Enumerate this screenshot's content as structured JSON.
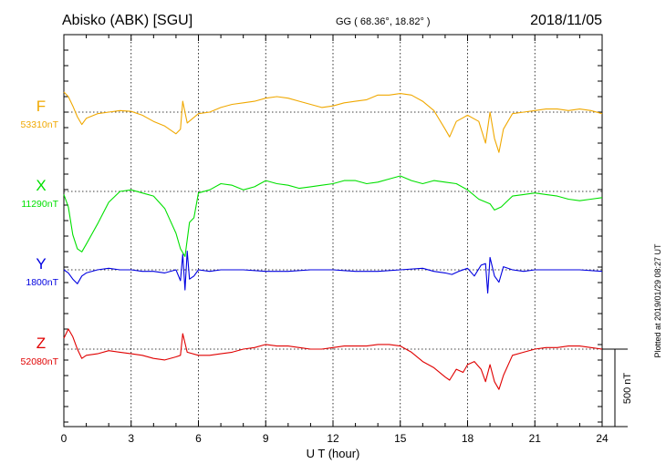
{
  "header": {
    "station": "Abisko (ABK)  [SGU]",
    "coords": "GG ( 68.36°,  18.82° )",
    "date": "2018/11/05"
  },
  "footer": {
    "plotted": "Plotted at 2019/01/29 08:27 UT"
  },
  "chart_data": {
    "type": "line",
    "title": "Abisko (ABK)  [SGU]",
    "xlabel": "U T (hour)",
    "xlim": [
      0,
      24
    ],
    "xticks": [
      0,
      3,
      6,
      9,
      12,
      15,
      18,
      21,
      24
    ],
    "xtick_labels": [
      "0",
      "3",
      "6",
      "9",
      "12",
      "15",
      "18",
      "21",
      "24"
    ],
    "grid": true,
    "scale_bar": {
      "label": "500 nT",
      "value": 500
    },
    "series": [
      {
        "name": "F",
        "baseline_label": "53310nT",
        "baseline": 53310,
        "color": "#f0a800",
        "x": [
          0,
          0.2,
          0.4,
          0.6,
          0.8,
          1.0,
          1.5,
          2.0,
          2.5,
          3.0,
          3.5,
          4.0,
          4.5,
          5.0,
          5.2,
          5.3,
          5.5,
          6.0,
          6.5,
          7.0,
          7.5,
          8.0,
          8.5,
          9.0,
          9.5,
          10.0,
          10.5,
          11.0,
          11.5,
          12.0,
          12.5,
          13.0,
          13.5,
          14.0,
          14.5,
          15.0,
          15.5,
          16.0,
          16.5,
          17.0,
          17.2,
          17.5,
          18.0,
          18.5,
          18.8,
          19.0,
          19.2,
          19.4,
          19.6,
          20.0,
          20.5,
          21.0,
          21.5,
          22.0,
          22.5,
          23.0,
          23.5,
          24.0
        ],
        "y": [
          53440,
          53410,
          53350,
          53280,
          53230,
          53270,
          53300,
          53310,
          53320,
          53315,
          53290,
          53250,
          53220,
          53170,
          53200,
          53380,
          53240,
          53300,
          53310,
          53340,
          53360,
          53370,
          53380,
          53400,
          53410,
          53400,
          53380,
          53360,
          53340,
          53350,
          53370,
          53380,
          53390,
          53420,
          53420,
          53430,
          53420,
          53380,
          53320,
          53200,
          53150,
          53250,
          53290,
          53250,
          53110,
          53310,
          53140,
          53050,
          53200,
          53300,
          53310,
          53320,
          53330,
          53330,
          53320,
          53330,
          53320,
          53300
        ]
      },
      {
        "name": "X",
        "baseline_label": "11290nT",
        "baseline": 11290,
        "color": "#00e000",
        "x": [
          0,
          0.2,
          0.4,
          0.6,
          0.8,
          1.0,
          1.5,
          2.0,
          2.5,
          3.0,
          3.5,
          4.0,
          4.5,
          5.0,
          5.2,
          5.4,
          5.6,
          5.8,
          6.0,
          6.5,
          7.0,
          7.5,
          8.0,
          8.5,
          9.0,
          9.5,
          10.0,
          10.5,
          11.0,
          11.5,
          12.0,
          12.5,
          13.0,
          13.5,
          14.0,
          14.5,
          15.0,
          15.5,
          16.0,
          16.5,
          17.0,
          17.5,
          18.0,
          18.5,
          19.0,
          19.2,
          19.5,
          20.0,
          20.5,
          21.0,
          21.5,
          22.0,
          22.5,
          23.0,
          23.5,
          24.0
        ],
        "y": [
          11270,
          11190,
          11010,
          10920,
          10900,
          10950,
          11080,
          11220,
          11290,
          11300,
          11280,
          11260,
          11180,
          11020,
          10920,
          10870,
          11090,
          11120,
          11280,
          11300,
          11340,
          11330,
          11300,
          11320,
          11360,
          11340,
          11330,
          11310,
          11320,
          11330,
          11340,
          11360,
          11360,
          11340,
          11350,
          11370,
          11390,
          11360,
          11340,
          11360,
          11350,
          11340,
          11300,
          11240,
          11210,
          11170,
          11190,
          11260,
          11270,
          11280,
          11270,
          11260,
          11240,
          11230,
          11240,
          11250
        ]
      },
      {
        "name": "Y",
        "baseline_label": "1800nT",
        "baseline": 1800,
        "color": "#0000e0",
        "x": [
          0,
          0.2,
          0.4,
          0.6,
          0.8,
          1.0,
          1.5,
          2.0,
          2.5,
          3.0,
          3.5,
          4.0,
          4.5,
          5.0,
          5.2,
          5.3,
          5.4,
          5.5,
          5.6,
          5.8,
          6.0,
          6.5,
          7.0,
          8.0,
          9.0,
          10.0,
          11.0,
          12.0,
          13.0,
          14.0,
          15.0,
          16.0,
          16.5,
          17.0,
          17.3,
          17.6,
          18.0,
          18.3,
          18.6,
          18.8,
          18.9,
          19.0,
          19.2,
          19.4,
          19.6,
          20.0,
          20.5,
          21.0,
          22.0,
          23.0,
          24.0
        ],
        "y": [
          1800,
          1780,
          1740,
          1710,
          1760,
          1780,
          1800,
          1810,
          1800,
          1800,
          1790,
          1790,
          1780,
          1800,
          1730,
          1900,
          1670,
          1920,
          1740,
          1760,
          1800,
          1790,
          1800,
          1800,
          1790,
          1790,
          1800,
          1800,
          1790,
          1790,
          1800,
          1810,
          1790,
          1780,
          1770,
          1790,
          1810,
          1760,
          1830,
          1840,
          1650,
          1880,
          1760,
          1720,
          1820,
          1800,
          1790,
          1800,
          1800,
          1800,
          1790
        ]
      },
      {
        "name": "Z",
        "baseline_label": "52080nT",
        "baseline": 52080,
        "color": "#e00000",
        "x": [
          0,
          0.2,
          0.4,
          0.6,
          0.8,
          1.0,
          1.5,
          2.0,
          2.5,
          3.0,
          3.5,
          4.0,
          4.5,
          5.0,
          5.2,
          5.3,
          5.5,
          6.0,
          6.5,
          7.0,
          7.5,
          8.0,
          8.5,
          9.0,
          9.5,
          10.0,
          10.5,
          11.0,
          11.5,
          12.0,
          12.5,
          13.0,
          13.5,
          14.0,
          14.5,
          15.0,
          15.5,
          16.0,
          16.5,
          17.0,
          17.2,
          17.5,
          17.8,
          18.0,
          18.3,
          18.6,
          18.8,
          19.0,
          19.2,
          19.4,
          19.6,
          20.0,
          20.5,
          21.0,
          21.5,
          22.0,
          22.5,
          23.0,
          23.5,
          24.0
        ],
        "y": [
          52150,
          52210,
          52160,
          52080,
          52020,
          52040,
          52050,
          52070,
          52060,
          52050,
          52040,
          52020,
          52010,
          52030,
          52040,
          52180,
          52060,
          52040,
          52040,
          52050,
          52060,
          52080,
          52090,
          52110,
          52100,
          52100,
          52090,
          52080,
          52080,
          52090,
          52100,
          52100,
          52100,
          52110,
          52110,
          52100,
          52060,
          52000,
          51960,
          51900,
          51880,
          51950,
          51930,
          51980,
          52000,
          51950,
          51870,
          51980,
          51870,
          51820,
          51910,
          52040,
          52060,
          52080,
          52090,
          52090,
          52100,
          52100,
          52090,
          52080
        ]
      }
    ]
  }
}
